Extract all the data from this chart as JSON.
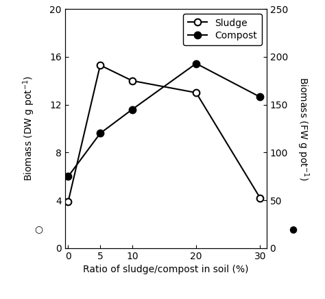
{
  "x": [
    0,
    5,
    10,
    20,
    30
  ],
  "sludge_y": [
    3.9,
    15.3,
    14.0,
    13.0,
    4.2
  ],
  "compost_y": [
    75,
    120,
    145,
    193,
    158
  ],
  "xlim": [
    -0.5,
    31
  ],
  "ylim_left": [
    0,
    20
  ],
  "ylim_right": [
    0,
    250
  ],
  "xticks": [
    0,
    5,
    10,
    20,
    30
  ],
  "yticks_left": [
    0,
    4,
    8,
    12,
    16,
    20
  ],
  "yticks_right": [
    0,
    50,
    100,
    150,
    200,
    250
  ],
  "xlabel": "Ratio of sludge/compost in soil (%)",
  "ylabel_left_main": "Biomass (DW g pot",
  "ylabel_right_main": "Biomass (FW g pot",
  "legend_sludge": "Sludge",
  "legend_compost": "Compost",
  "line_color": "black",
  "background_color": "white",
  "fontsize": 10,
  "marker_size": 7,
  "linewidth": 1.5
}
